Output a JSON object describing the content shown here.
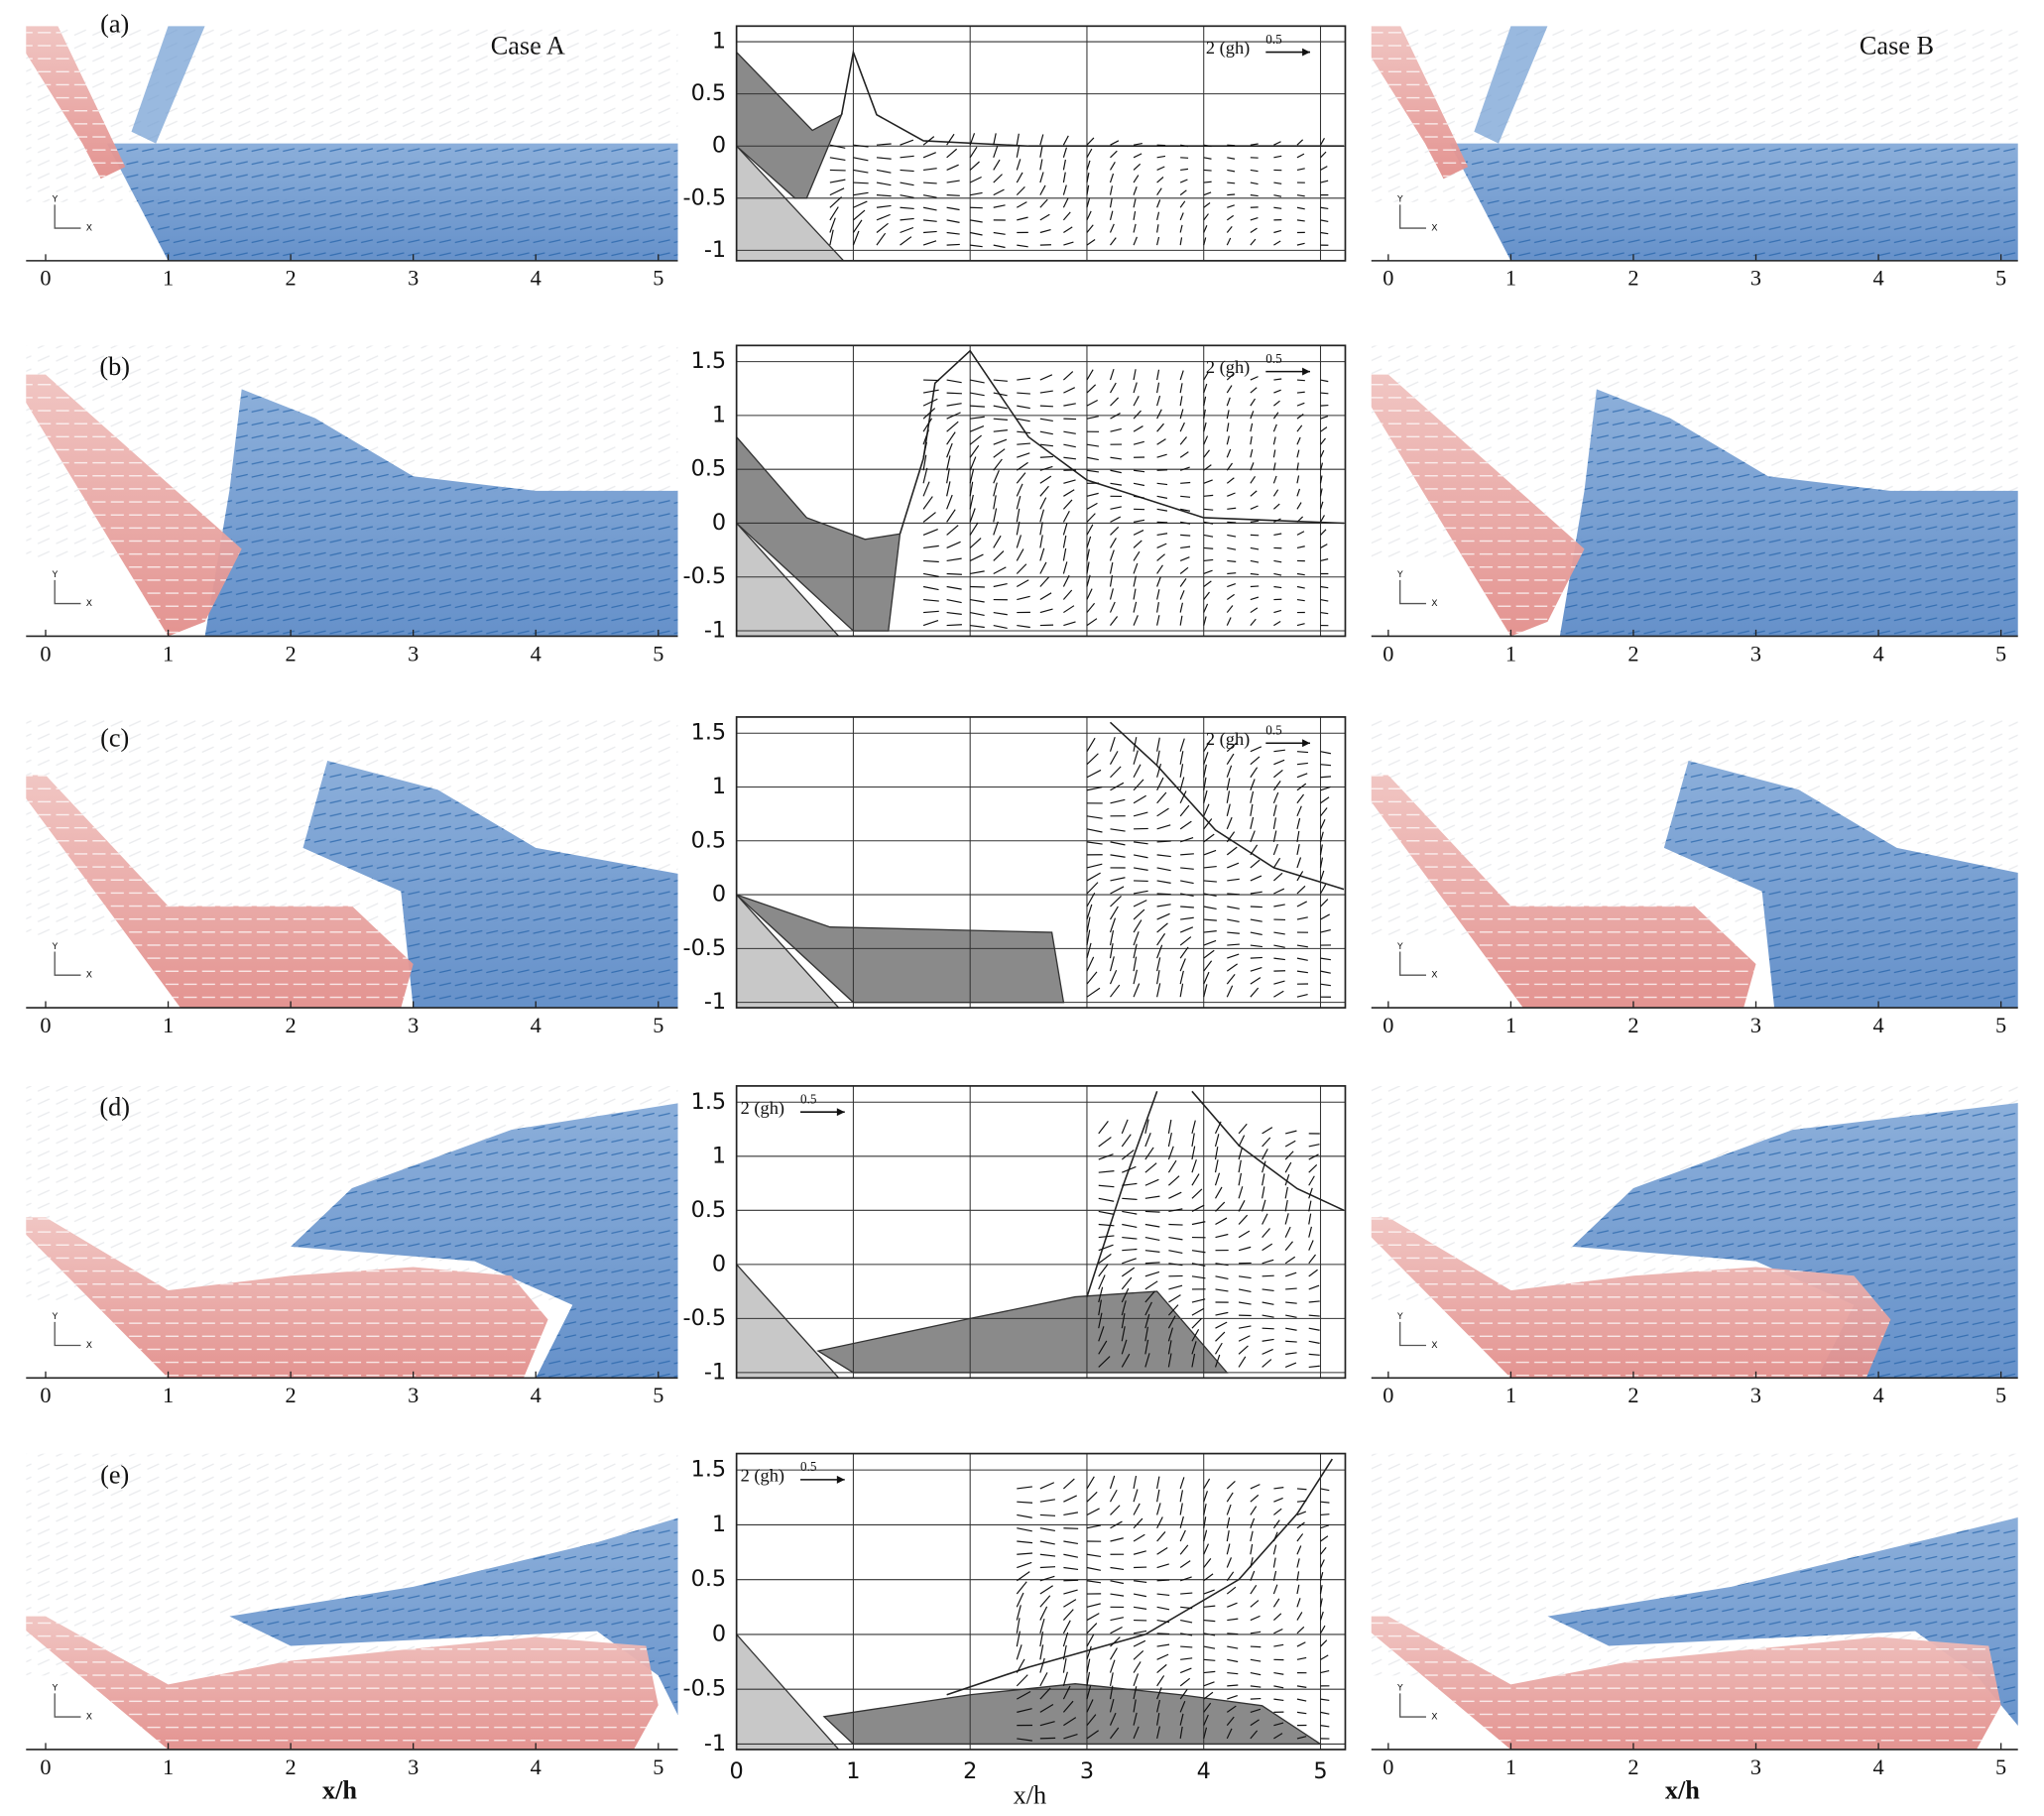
{
  "figure": {
    "case_labels": [
      "Case A",
      "Case B"
    ],
    "panel_labels": [
      "(a)",
      "(b)",
      "(c)",
      "(d)",
      "(e)"
    ],
    "x_label": "x/h",
    "x_ticks": [
      0,
      1,
      2,
      3,
      4,
      5
    ],
    "y_ticks_short": [
      1,
      0.5,
      0,
      -0.5,
      -1
    ],
    "y_ticks_tall": [
      1.5,
      1,
      0.5,
      0,
      -0.5,
      -1
    ],
    "scale_label": "2 (gh)",
    "scale_exponent": "0.5",
    "triad_labels": [
      "Y",
      "X"
    ]
  }
}
